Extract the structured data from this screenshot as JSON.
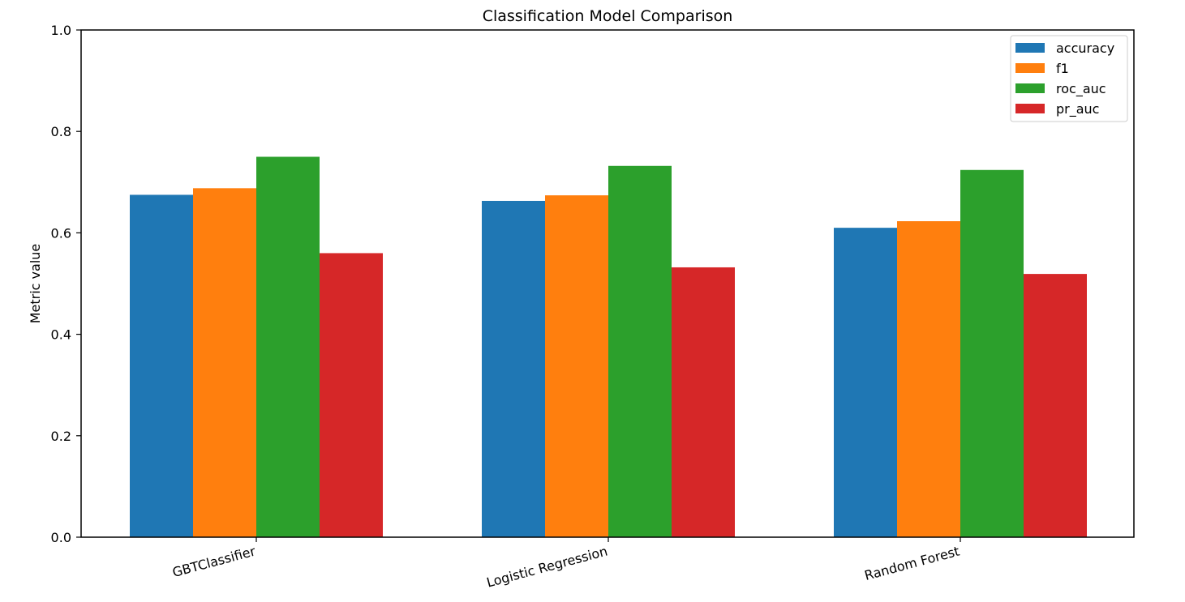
{
  "chart_data": {
    "type": "bar",
    "title": "Classification Model Comparison",
    "xlabel": "",
    "ylabel": "Metric value",
    "ylim": [
      0,
      1.0
    ],
    "yticks": [
      0.0,
      0.2,
      0.4,
      0.6,
      0.8,
      1.0
    ],
    "ytick_labels": [
      "0.0",
      "0.2",
      "0.4",
      "0.6",
      "0.8",
      "1.0"
    ],
    "categories": [
      "GBTClassifier",
      "Logistic Regression",
      "Random Forest"
    ],
    "series": [
      {
        "name": "accuracy",
        "values": [
          0.675,
          0.663,
          0.61
        ],
        "color": "#1f77b4"
      },
      {
        "name": "f1",
        "values": [
          0.688,
          0.674,
          0.623
        ],
        "color": "#ff7f0e"
      },
      {
        "name": "roc_auc",
        "values": [
          0.75,
          0.732,
          0.724
        ],
        "color": "#2ca02c"
      },
      {
        "name": "pr_auc",
        "values": [
          0.56,
          0.532,
          0.519
        ],
        "color": "#d62728"
      }
    ],
    "grid": false,
    "legend_position": "top-right"
  }
}
